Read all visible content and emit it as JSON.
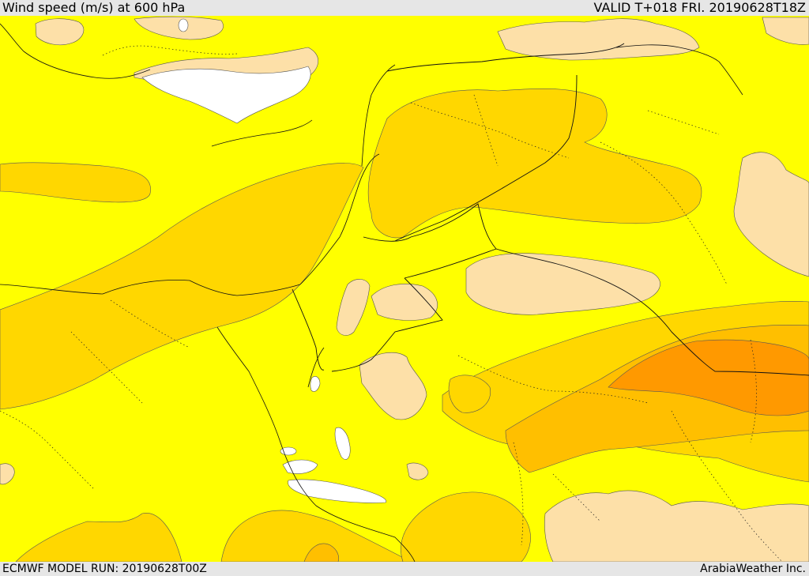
{
  "header": {
    "title": "Wind speed (m/s) at 600 hPa",
    "valid_time": "VALID T+018 FRI. 20190628T18Z"
  },
  "footer": {
    "model_run": "ECMWF MODEL RUN: 20190628T00Z",
    "credit": "ArabiaWeather Inc."
  },
  "map": {
    "variable": "wind speed",
    "units": "m/s",
    "pressure_level": "600 hPa",
    "colors": {
      "white": "#ffffff",
      "peach": "#fde0a8",
      "yellow": "#ffff00",
      "gold": "#ffd700",
      "amber": "#ffbf00",
      "orange": "#ff9900"
    }
  }
}
